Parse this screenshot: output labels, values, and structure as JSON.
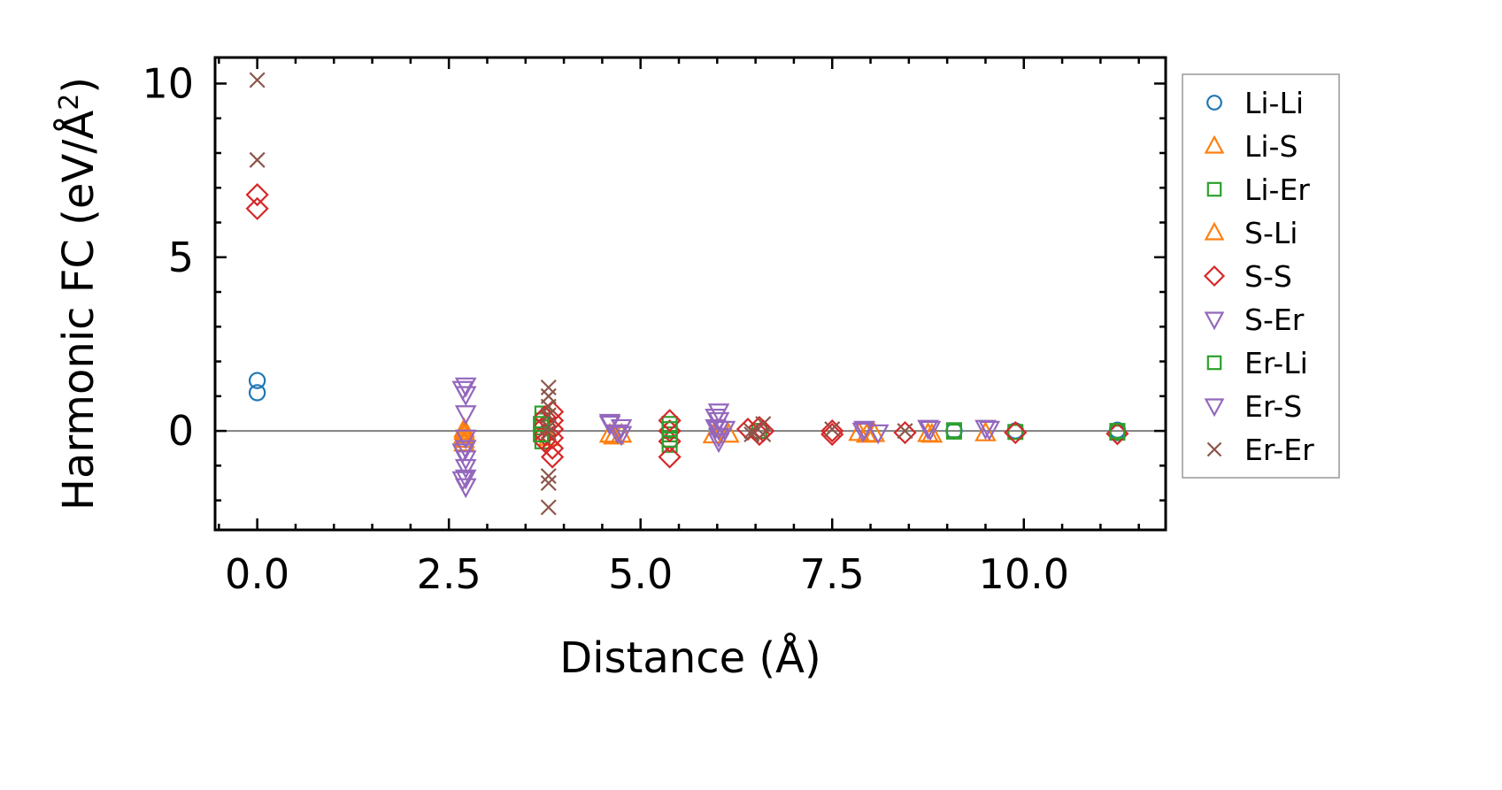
{
  "chart_data": {
    "type": "scatter",
    "title": "",
    "xlabel": "Distance (Å)",
    "ylabel_main": "Harmonic FC (eV/Å",
    "ylabel_sup": "2",
    "ylabel_close": ")",
    "xlim": [
      -0.55,
      11.85
    ],
    "ylim": [
      -2.85,
      10.75
    ],
    "xticks": [
      0.0,
      2.5,
      5.0,
      7.5,
      10.0
    ],
    "xtick_labels": [
      "0.0",
      "2.5",
      "5.0",
      "7.5",
      "10.0"
    ],
    "yticks": [
      0,
      5,
      10
    ],
    "ytick_labels": [
      "0",
      "5",
      "10"
    ],
    "x_minor_step": 0.5,
    "y_minor_step": 1,
    "zero_line": true,
    "legend_position": "outside-right",
    "series": [
      {
        "name": "Li-Li",
        "color": "#1f77b4",
        "marker": "circle",
        "points": [
          [
            0.0,
            1.45
          ],
          [
            0.0,
            1.1
          ],
          [
            9.09,
            0.0
          ],
          [
            9.89,
            0.0
          ],
          [
            11.22,
            -0.05
          ],
          [
            11.22,
            0.02
          ]
        ]
      },
      {
        "name": "Li-S",
        "color": "#ff7f0e",
        "marker": "triangle-up",
        "points": [
          [
            2.7,
            -0.02
          ],
          [
            2.7,
            -0.12
          ],
          [
            2.7,
            -0.25
          ],
          [
            2.7,
            0.05
          ],
          [
            4.6,
            -0.1
          ],
          [
            4.75,
            -0.1
          ],
          [
            5.95,
            -0.12
          ],
          [
            6.15,
            -0.1
          ],
          [
            7.85,
            -0.05
          ],
          [
            8.05,
            -0.08
          ],
          [
            8.75,
            -0.08
          ],
          [
            9.5,
            -0.06
          ]
        ]
      },
      {
        "name": "Li-Er",
        "color": "#2ca02c",
        "marker": "square",
        "points": [
          [
            3.72,
            0.5
          ],
          [
            3.72,
            0.3
          ],
          [
            3.72,
            0.1
          ],
          [
            3.72,
            -0.1
          ],
          [
            3.72,
            -0.3
          ],
          [
            5.38,
            0.2
          ],
          [
            5.38,
            -0.1
          ],
          [
            5.38,
            -0.4
          ],
          [
            6.55,
            0.0
          ],
          [
            9.09,
            -0.02
          ],
          [
            9.89,
            -0.03
          ],
          [
            11.22,
            -0.05
          ]
        ]
      },
      {
        "name": "S-Li",
        "color": "#ff7f0e",
        "marker": "triangle-up",
        "points": [
          [
            2.7,
            -0.35
          ],
          [
            3.8,
            -0.2
          ],
          [
            4.65,
            -0.15
          ],
          [
            7.95,
            -0.1
          ],
          [
            8.8,
            -0.1
          ]
        ]
      },
      {
        "name": "S-S",
        "color": "#d62728",
        "marker": "diamond",
        "points": [
          [
            0.0,
            6.8
          ],
          [
            0.0,
            6.4
          ],
          [
            3.75,
            0.4
          ],
          [
            3.75,
            0.15
          ],
          [
            3.75,
            -0.1
          ],
          [
            3.75,
            -0.3
          ],
          [
            3.85,
            0.55
          ],
          [
            3.85,
            0.3
          ],
          [
            3.85,
            0.05
          ],
          [
            3.85,
            -0.2
          ],
          [
            3.85,
            -0.5
          ],
          [
            3.85,
            -0.75
          ],
          [
            5.38,
            0.3
          ],
          [
            5.38,
            0.0
          ],
          [
            5.38,
            -0.3
          ],
          [
            5.38,
            -0.75
          ],
          [
            6.4,
            0.05
          ],
          [
            6.55,
            0.1
          ],
          [
            6.55,
            -0.1
          ],
          [
            6.6,
            0.0
          ],
          [
            7.5,
            0.0
          ],
          [
            7.5,
            -0.1
          ],
          [
            8.45,
            -0.05
          ],
          [
            9.89,
            -0.05
          ],
          [
            11.22,
            -0.08
          ]
        ]
      },
      {
        "name": "S-Er",
        "color": "#9467bd",
        "marker": "triangle-down",
        "points": [
          [
            2.72,
            1.3
          ],
          [
            2.72,
            1.05
          ],
          [
            2.72,
            0.5
          ],
          [
            2.72,
            -0.2
          ],
          [
            2.72,
            -0.5
          ],
          [
            2.72,
            -0.8
          ],
          [
            2.72,
            -1.05
          ],
          [
            2.72,
            -1.35
          ],
          [
            2.72,
            -1.6
          ],
          [
            4.6,
            0.2
          ],
          [
            4.75,
            0.1
          ],
          [
            4.75,
            -0.1
          ],
          [
            6.02,
            0.55
          ],
          [
            6.02,
            0.3
          ],
          [
            6.02,
            0.05
          ],
          [
            6.02,
            -0.15
          ],
          [
            6.02,
            -0.3
          ],
          [
            7.9,
            0.0
          ],
          [
            8.1,
            -0.05
          ],
          [
            8.78,
            0.05
          ],
          [
            9.55,
            0.05
          ]
        ]
      },
      {
        "name": "Er-Li",
        "color": "#2ca02c",
        "marker": "square",
        "points": [
          [
            3.7,
            0.2
          ],
          [
            3.7,
            -0.1
          ],
          [
            5.38,
            0.05
          ],
          [
            5.38,
            -0.25
          ],
          [
            9.09,
            0.02
          ],
          [
            11.22,
            0.0
          ]
        ]
      },
      {
        "name": "Er-S",
        "color": "#9467bd",
        "marker": "triangle-down",
        "points": [
          [
            2.68,
            1.2
          ],
          [
            2.68,
            -0.6
          ],
          [
            2.68,
            -1.4
          ],
          [
            4.6,
            0.25
          ],
          [
            4.7,
            -0.05
          ],
          [
            5.98,
            0.4
          ],
          [
            5.98,
            0.1
          ],
          [
            6.1,
            0.05
          ],
          [
            7.92,
            0.05
          ],
          [
            8.75,
            0.08
          ],
          [
            9.5,
            0.08
          ]
        ]
      },
      {
        "name": "Er-Er",
        "color": "#8c564b",
        "marker": "x",
        "points": [
          [
            0.0,
            10.1
          ],
          [
            0.0,
            7.8
          ],
          [
            3.8,
            1.25
          ],
          [
            3.8,
            1.0
          ],
          [
            3.8,
            0.7
          ],
          [
            3.8,
            0.45
          ],
          [
            3.8,
            0.1
          ],
          [
            3.8,
            -0.05
          ],
          [
            3.8,
            -1.3
          ],
          [
            3.8,
            -1.5
          ],
          [
            3.8,
            -2.2
          ],
          [
            6.45,
            0.0
          ],
          [
            6.6,
            0.2
          ],
          [
            6.6,
            -0.1
          ],
          [
            6.45,
            -0.1
          ],
          [
            7.5,
            0.05
          ],
          [
            8.45,
            0.0
          ]
        ]
      }
    ]
  }
}
